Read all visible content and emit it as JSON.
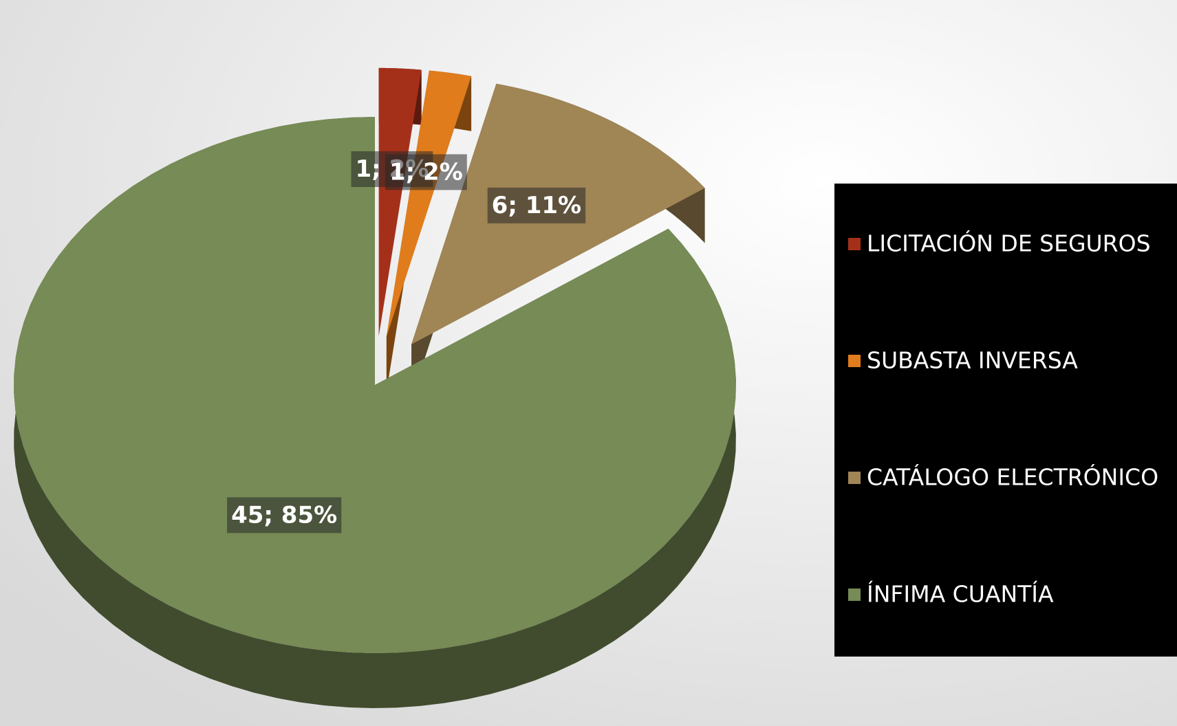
{
  "chart_data": {
    "type": "pie",
    "categories": [
      "LICITACIÓN DE SEGUROS",
      "SUBASTA INVERSA",
      "CATÁLOGO ELECTRÓNICO",
      "ÍNFIMA CUANTÍA"
    ],
    "values": [
      1,
      1,
      6,
      45
    ],
    "value_labels": [
      "1; 2%",
      "1; 2%",
      "6; 11%",
      "45; 85%"
    ],
    "colors": [
      "#a5301a",
      "#e07c1c",
      "#a08555",
      "#768b55"
    ],
    "legend": "right"
  }
}
